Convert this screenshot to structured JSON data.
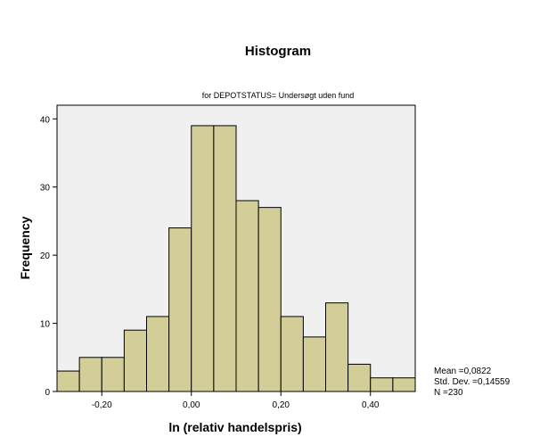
{
  "chart_data": {
    "type": "bar",
    "title": "Histogram",
    "subtitle": "for DEPOTSTATUS= Undersøgt uden fund",
    "xlabel": "ln (relativ handelspris)",
    "ylabel": "Frequency",
    "bin_width": 0.05,
    "bins": [
      {
        "start": -0.3,
        "end": -0.25,
        "count": 3
      },
      {
        "start": -0.25,
        "end": -0.2,
        "count": 5
      },
      {
        "start": -0.2,
        "end": -0.15,
        "count": 5
      },
      {
        "start": -0.15,
        "end": -0.1,
        "count": 9
      },
      {
        "start": -0.1,
        "end": -0.05,
        "count": 11
      },
      {
        "start": -0.05,
        "end": 0.0,
        "count": 24
      },
      {
        "start": 0.0,
        "end": 0.05,
        "count": 39
      },
      {
        "start": 0.05,
        "end": 0.1,
        "count": 39
      },
      {
        "start": 0.1,
        "end": 0.15,
        "count": 28
      },
      {
        "start": 0.15,
        "end": 0.2,
        "count": 27
      },
      {
        "start": 0.2,
        "end": 0.25,
        "count": 11
      },
      {
        "start": 0.25,
        "end": 0.3,
        "count": 8
      },
      {
        "start": 0.3,
        "end": 0.35,
        "count": 13
      },
      {
        "start": 0.35,
        "end": 0.4,
        "count": 4
      },
      {
        "start": 0.4,
        "end": 0.45,
        "count": 2
      },
      {
        "start": 0.45,
        "end": 0.5,
        "count": 2
      }
    ],
    "xlim": [
      -0.3,
      0.5
    ],
    "ylim": [
      0,
      42
    ],
    "x_ticks": [
      {
        "value": -0.2,
        "label": "-0,20"
      },
      {
        "value": 0.0,
        "label": "0,00"
      },
      {
        "value": 0.2,
        "label": "0,20"
      },
      {
        "value": 0.4,
        "label": "0,40"
      }
    ],
    "y_ticks": [
      {
        "value": 0,
        "label": "0"
      },
      {
        "value": 10,
        "label": "10"
      },
      {
        "value": 20,
        "label": "20"
      },
      {
        "value": 30,
        "label": "30"
      },
      {
        "value": 40,
        "label": "40"
      }
    ],
    "stats": {
      "mean": "Mean =0,0822",
      "std_dev": "Std. Dev. =0,14559",
      "n": "N =230"
    },
    "grid": false,
    "colors": {
      "bar_fill": "#d3ce98",
      "bar_stroke": "#000000",
      "plot_background": "#f0f0f0"
    }
  }
}
